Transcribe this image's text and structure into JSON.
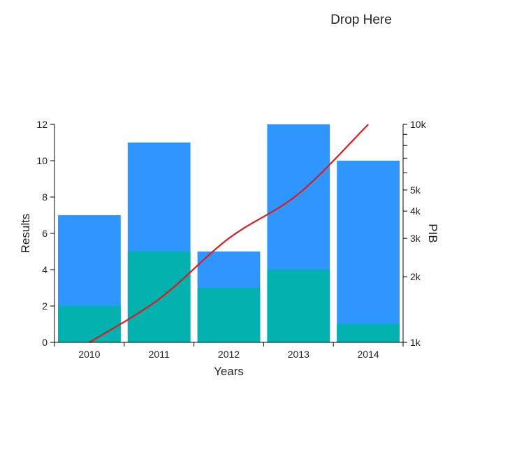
{
  "drop_zone": {
    "label": "Drop Here"
  },
  "colors": {
    "bar_total": "#2f95ff",
    "bar_part": "#03b2ae",
    "line": "#e0191d",
    "axis": "#000000",
    "text": "#222222"
  },
  "chart_data": {
    "type": "bar",
    "categories": [
      "2010",
      "2011",
      "2012",
      "2013",
      "2014"
    ],
    "series": [
      {
        "values": [
          7,
          11,
          5,
          12,
          10
        ]
      },
      {
        "values": [
          2,
          5,
          3,
          4,
          1
        ]
      }
    ],
    "stacking": "overlay",
    "line_series": {
      "type": "line",
      "axis": "right",
      "values": [
        1000,
        1580,
        3000,
        4800,
        10000
      ]
    },
    "xlabel": "Years",
    "ylabel": "Results",
    "y2label": "PIB",
    "ylim": [
      0,
      12
    ],
    "y_ticks": [
      0,
      2,
      4,
      6,
      8,
      10,
      12
    ],
    "y2lim": [
      1000,
      10000
    ],
    "y2_scale": "log",
    "y2_ticks": [
      {
        "value": 1000,
        "label": "1k"
      },
      {
        "value": 2000,
        "label": "2k"
      },
      {
        "value": 3000,
        "label": "3k"
      },
      {
        "value": 4000,
        "label": "4k"
      },
      {
        "value": 5000,
        "label": "5k"
      },
      {
        "value": 6000,
        "label": ""
      },
      {
        "value": 7000,
        "label": ""
      },
      {
        "value": 8000,
        "label": ""
      },
      {
        "value": 9000,
        "label": ""
      },
      {
        "value": 10000,
        "label": "10k"
      }
    ],
    "grid": false
  }
}
